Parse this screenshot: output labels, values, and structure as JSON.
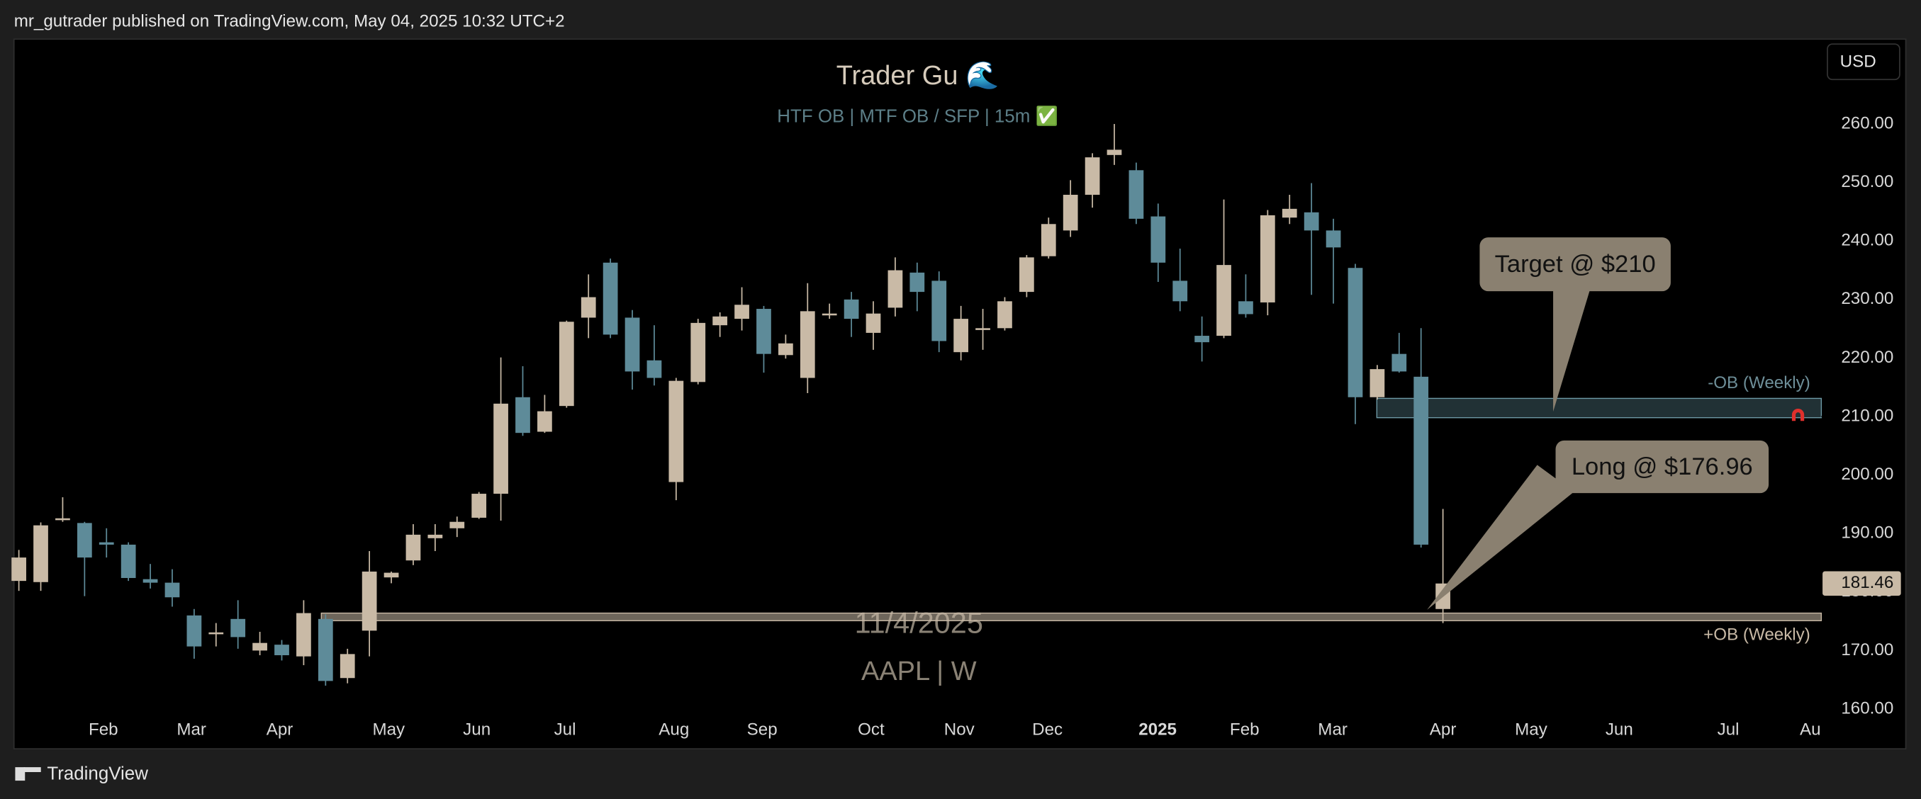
{
  "header": {
    "text": "mr_gutrader published on TradingView.com, May 04, 2025 10:32 UTC+2"
  },
  "footer": {
    "brand": "TradingView"
  },
  "chart_data": {
    "type": "candlestick",
    "title": "Trader Gu 🌊",
    "subtitle": "HTF OB  |  MTF OB / SFP  |  15m ✅",
    "watermark_date": "11/4/2025",
    "symbol": "AAPL | W",
    "currency": "USD",
    "up_color": "#c9baa6",
    "down_color": "#5e8b99",
    "ylim": [
      153.2,
      274.5
    ],
    "yticks": [
      {
        "value": 160,
        "label": "160.00"
      },
      {
        "value": 170,
        "label": "170.00"
      },
      {
        "value": 180,
        "label": "180.00"
      },
      {
        "value": 190,
        "label": "190.00"
      },
      {
        "value": 200,
        "label": "200.00"
      },
      {
        "value": 210,
        "label": "210.00"
      },
      {
        "value": 220,
        "label": "220.00"
      },
      {
        "value": 230,
        "label": "230.00"
      },
      {
        "value": 240,
        "label": "240.00"
      },
      {
        "value": 250,
        "label": "250.00"
      },
      {
        "value": 260,
        "label": "260.00"
      }
    ],
    "xticks": [
      "Feb",
      "Mar",
      "Apr",
      "May",
      "Jun",
      "Jul",
      "Aug",
      "Sep",
      "Oct",
      "Nov",
      "Dec",
      "2025",
      "Feb",
      "Mar",
      "Apr",
      "May",
      "Jun",
      "Jul",
      "Au"
    ],
    "candles": {
      "open": [
        181.9,
        181.7,
        192.4,
        191.8,
        188.5,
        188.1,
        182.2,
        181.6,
        176.0,
        172.9,
        175.4,
        170.0,
        171.0,
        169.0,
        175.4,
        165.3,
        173.4,
        182.5,
        185.4,
        189.2,
        190.9,
        192.7,
        196.8,
        213.3,
        207.4,
        211.8,
        226.9,
        236.3,
        226.9,
        219.6,
        198.8,
        215.9,
        225.6,
        226.7,
        228.4,
        220.5,
        216.6,
        227.4,
        230.0,
        224.3,
        228.6,
        234.6,
        233.2,
        221.0,
        224.8,
        225.1,
        231.3,
        237.4,
        241.8,
        247.9,
        254.7,
        252.1,
        244.2,
        233.2,
        223.8,
        223.8,
        229.7,
        229.5,
        244.0,
        244.9,
        241.8,
        235.4,
        213.3,
        220.7,
        216.8,
        177.1
      ],
      "high": [
        187.2,
        191.9,
        196.2,
        192.0,
        190.9,
        188.5,
        184.8,
        183.9,
        177.1,
        174.7,
        178.6,
        173.2,
        171.8,
        178.6,
        176.2,
        170.3,
        187.0,
        183.5,
        191.6,
        191.6,
        192.9,
        197.1,
        220.1,
        218.6,
        213.7,
        226.4,
        234.3,
        237.0,
        228.2,
        225.6,
        216.6,
        226.7,
        227.8,
        232.1,
        228.9,
        224.0,
        232.8,
        229.3,
        231.3,
        229.7,
        237.2,
        236.3,
        234.8,
        228.9,
        228.4,
        230.4,
        237.6,
        244.0,
        250.4,
        255.0,
        260.0,
        253.4,
        246.4,
        238.7,
        227.1,
        247.1,
        234.3,
        245.3,
        247.9,
        249.9,
        243.8,
        236.1,
        218.8,
        224.3,
        225.1,
        194.2
      ],
      "low": [
        180.2,
        180.2,
        192.0,
        179.3,
        185.9,
        181.9,
        180.6,
        177.5,
        168.6,
        170.7,
        170.3,
        169.2,
        168.3,
        167.5,
        164.0,
        164.4,
        169.0,
        181.5,
        184.6,
        187.0,
        189.4,
        192.5,
        192.2,
        206.7,
        207.2,
        211.5,
        223.4,
        223.4,
        214.6,
        215.3,
        195.7,
        215.5,
        223.6,
        224.7,
        217.5,
        219.9,
        214.0,
        226.7,
        223.6,
        221.4,
        227.1,
        228.0,
        221.0,
        219.6,
        221.4,
        224.7,
        230.4,
        237.0,
        240.7,
        245.7,
        253.0,
        242.9,
        233.0,
        228.0,
        219.4,
        223.4,
        226.9,
        227.3,
        242.9,
        230.8,
        229.3,
        208.7,
        212.9,
        217.5,
        187.6,
        174.7
      ],
      "close": [
        185.9,
        191.4,
        192.6,
        185.9,
        188.1,
        182.4,
        181.6,
        179.1,
        170.7,
        173.1,
        172.3,
        171.3,
        169.2,
        176.4,
        164.8,
        169.4,
        183.5,
        183.3,
        189.8,
        189.8,
        192.0,
        196.8,
        212.2,
        207.2,
        210.9,
        226.2,
        230.4,
        224.0,
        217.7,
        216.6,
        216.1,
        226.0,
        227.1,
        229.1,
        220.7,
        222.5,
        228.0,
        227.6,
        226.7,
        227.6,
        235.0,
        231.3,
        222.9,
        226.7,
        225.1,
        229.7,
        237.2,
        242.9,
        247.9,
        254.3,
        255.6,
        243.8,
        236.3,
        229.7,
        222.7,
        235.9,
        227.5,
        244.4,
        245.5,
        241.8,
        238.9,
        213.3,
        218.1,
        217.7,
        188.1,
        181.46
      ]
    },
    "last_price": 181.46,
    "zones": [
      {
        "label": "-OB (Weekly)",
        "top": 213.1,
        "bottom": 209.8
      },
      {
        "label": "+OB (Weekly)",
        "top": 176.4,
        "bottom": 175.1
      }
    ],
    "annotations": [
      {
        "text": "Target @ $210",
        "price": 210
      },
      {
        "text": "Long @ $176.96",
        "price": 176.96
      }
    ]
  }
}
